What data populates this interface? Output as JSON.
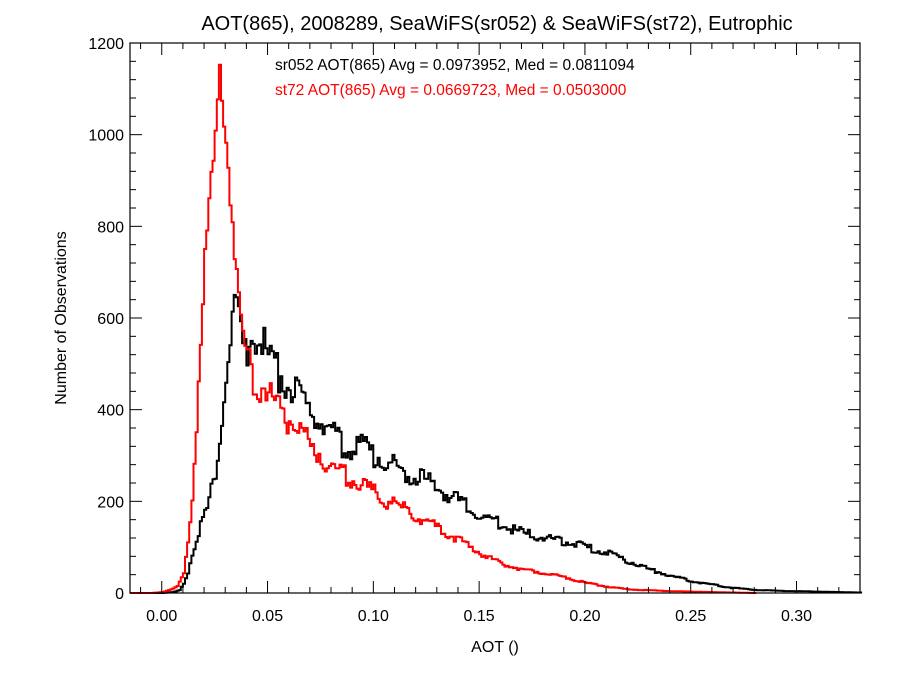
{
  "chart_data": {
    "type": "line",
    "title": "AOT(865), 2008289, SeaWiFS(sr052) & SeaWiFS(st72), Eutrophic",
    "xlabel": "AOT ()",
    "ylabel": "Number of Observations",
    "xlim": [
      -0.015,
      0.33
    ],
    "ylim": [
      0,
      1200
    ],
    "xticks": [
      "0.00",
      "0.05",
      "0.10",
      "0.15",
      "0.20",
      "0.25",
      "0.30"
    ],
    "yticks": [
      "0",
      "200",
      "400",
      "600",
      "800",
      "1000",
      "1200"
    ],
    "grid": false,
    "series": [
      {
        "name": "sr052",
        "color": "#000000",
        "annotation": "sr052 AOT(865) Avg = 0.0973952, Med = 0.0811094",
        "points": [
          [
            -0.015,
            0
          ],
          [
            0.0,
            0
          ],
          [
            0.005,
            2
          ],
          [
            0.008,
            6
          ],
          [
            0.01,
            20
          ],
          [
            0.012,
            45
          ],
          [
            0.014,
            85
          ],
          [
            0.016,
            115
          ],
          [
            0.018,
            145
          ],
          [
            0.02,
            170
          ],
          [
            0.022,
            195
          ],
          [
            0.024,
            245
          ],
          [
            0.026,
            300
          ],
          [
            0.028,
            380
          ],
          [
            0.03,
            470
          ],
          [
            0.032,
            560
          ],
          [
            0.034,
            650
          ],
          [
            0.036,
            610
          ],
          [
            0.038,
            520
          ],
          [
            0.04,
            540
          ],
          [
            0.042,
            580
          ],
          [
            0.044,
            550
          ],
          [
            0.046,
            545
          ],
          [
            0.048,
            535
          ],
          [
            0.05,
            510
          ],
          [
            0.055,
            480
          ],
          [
            0.06,
            450
          ],
          [
            0.065,
            420
          ],
          [
            0.07,
            395
          ],
          [
            0.075,
            370
          ],
          [
            0.08,
            345
          ],
          [
            0.085,
            325
          ],
          [
            0.09,
            315
          ],
          [
            0.095,
            320
          ],
          [
            0.1,
            300
          ],
          [
            0.105,
            290
          ],
          [
            0.11,
            275
          ],
          [
            0.115,
            265
          ],
          [
            0.12,
            250
          ],
          [
            0.125,
            245
          ],
          [
            0.13,
            230
          ],
          [
            0.135,
            215
          ],
          [
            0.14,
            200
          ],
          [
            0.145,
            185
          ],
          [
            0.15,
            170
          ],
          [
            0.155,
            160
          ],
          [
            0.16,
            150
          ],
          [
            0.165,
            140
          ],
          [
            0.17,
            130
          ],
          [
            0.175,
            125
          ],
          [
            0.18,
            120
          ],
          [
            0.185,
            115
          ],
          [
            0.19,
            112
          ],
          [
            0.195,
            108
          ],
          [
            0.2,
            100
          ],
          [
            0.205,
            95
          ],
          [
            0.21,
            90
          ],
          [
            0.215,
            80
          ],
          [
            0.22,
            70
          ],
          [
            0.225,
            60
          ],
          [
            0.23,
            52
          ],
          [
            0.235,
            45
          ],
          [
            0.24,
            38
          ],
          [
            0.245,
            32
          ],
          [
            0.25,
            26
          ],
          [
            0.255,
            22
          ],
          [
            0.26,
            18
          ],
          [
            0.265,
            14
          ],
          [
            0.27,
            11
          ],
          [
            0.275,
            9
          ],
          [
            0.28,
            7
          ],
          [
            0.29,
            5
          ],
          [
            0.3,
            4
          ],
          [
            0.31,
            3
          ],
          [
            0.32,
            2
          ],
          [
            0.33,
            1
          ]
        ]
      },
      {
        "name": "st72",
        "color": "#ff0000",
        "annotation": "st72 AOT(865) Avg = 0.0669723, Med = 0.0503000",
        "points": [
          [
            -0.015,
            0
          ],
          [
            -0.005,
            0
          ],
          [
            0.0,
            2
          ],
          [
            0.004,
            8
          ],
          [
            0.007,
            15
          ],
          [
            0.01,
            40
          ],
          [
            0.012,
            110
          ],
          [
            0.014,
            210
          ],
          [
            0.016,
            380
          ],
          [
            0.018,
            560
          ],
          [
            0.02,
            720
          ],
          [
            0.022,
            860
          ],
          [
            0.024,
            940
          ],
          [
            0.025,
            1000
          ],
          [
            0.026,
            1050
          ],
          [
            0.027,
            1110
          ],
          [
            0.028,
            1080
          ],
          [
            0.029,
            1050
          ],
          [
            0.03,
            1020
          ],
          [
            0.031,
            940
          ],
          [
            0.032,
            880
          ],
          [
            0.033,
            810
          ],
          [
            0.034,
            760
          ],
          [
            0.035,
            700
          ],
          [
            0.036,
            640
          ],
          [
            0.038,
            560
          ],
          [
            0.04,
            510
          ],
          [
            0.042,
            480
          ],
          [
            0.044,
            460
          ],
          [
            0.046,
            455
          ],
          [
            0.048,
            450
          ],
          [
            0.05,
            435
          ],
          [
            0.055,
            400
          ],
          [
            0.06,
            375
          ],
          [
            0.065,
            350
          ],
          [
            0.07,
            320
          ],
          [
            0.075,
            300
          ],
          [
            0.08,
            275
          ],
          [
            0.085,
            260
          ],
          [
            0.09,
            250
          ],
          [
            0.095,
            235
          ],
          [
            0.1,
            220
          ],
          [
            0.105,
            205
          ],
          [
            0.11,
            190
          ],
          [
            0.115,
            180
          ],
          [
            0.12,
            168
          ],
          [
            0.125,
            155
          ],
          [
            0.13,
            140
          ],
          [
            0.135,
            130
          ],
          [
            0.14,
            115
          ],
          [
            0.145,
            100
          ],
          [
            0.15,
            88
          ],
          [
            0.155,
            75
          ],
          [
            0.16,
            65
          ],
          [
            0.165,
            58
          ],
          [
            0.17,
            52
          ],
          [
            0.175,
            48
          ],
          [
            0.18,
            44
          ],
          [
            0.185,
            40
          ],
          [
            0.19,
            35
          ],
          [
            0.195,
            28
          ],
          [
            0.2,
            22
          ],
          [
            0.205,
            18
          ],
          [
            0.21,
            14
          ],
          [
            0.215,
            11
          ],
          [
            0.22,
            8
          ],
          [
            0.23,
            6
          ],
          [
            0.24,
            4
          ],
          [
            0.25,
            3
          ],
          [
            0.26,
            2
          ],
          [
            0.27,
            1
          ],
          [
            0.28,
            0
          ]
        ]
      }
    ]
  }
}
